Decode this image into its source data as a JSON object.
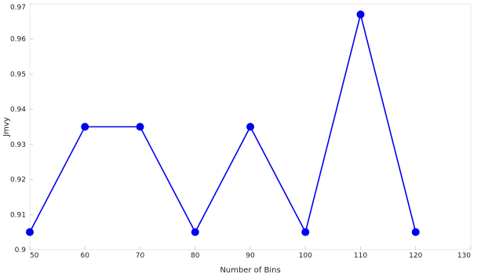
{
  "chart_data": {
    "type": "line",
    "xlabel": "Number of Bins",
    "ylabel": "Jmvy",
    "xlim": [
      50,
      130
    ],
    "ylim": [
      0.9,
      0.97
    ],
    "x_ticks": [
      50,
      60,
      70,
      80,
      90,
      100,
      110,
      120,
      130
    ],
    "x_tick_labels": [
      "50",
      "60",
      "70",
      "80",
      "90",
      "100",
      "110",
      "120",
      "130"
    ],
    "y_ticks": [
      0.9,
      0.91,
      0.92,
      0.93,
      0.94,
      0.95,
      0.96,
      0.97
    ],
    "y_tick_labels": [
      "0.9",
      "0.91",
      "0.92",
      "0.93",
      "0.94",
      "0.95",
      "0.96",
      "0.97"
    ],
    "grid": false,
    "series": [
      {
        "color": "#0000ee",
        "marker": "circle",
        "x": [
          50,
          60,
          70,
          80,
          90,
          100,
          110,
          120
        ],
        "y": [
          0.905,
          0.935,
          0.935,
          0.905,
          0.935,
          0.905,
          0.967,
          0.905
        ]
      }
    ]
  }
}
